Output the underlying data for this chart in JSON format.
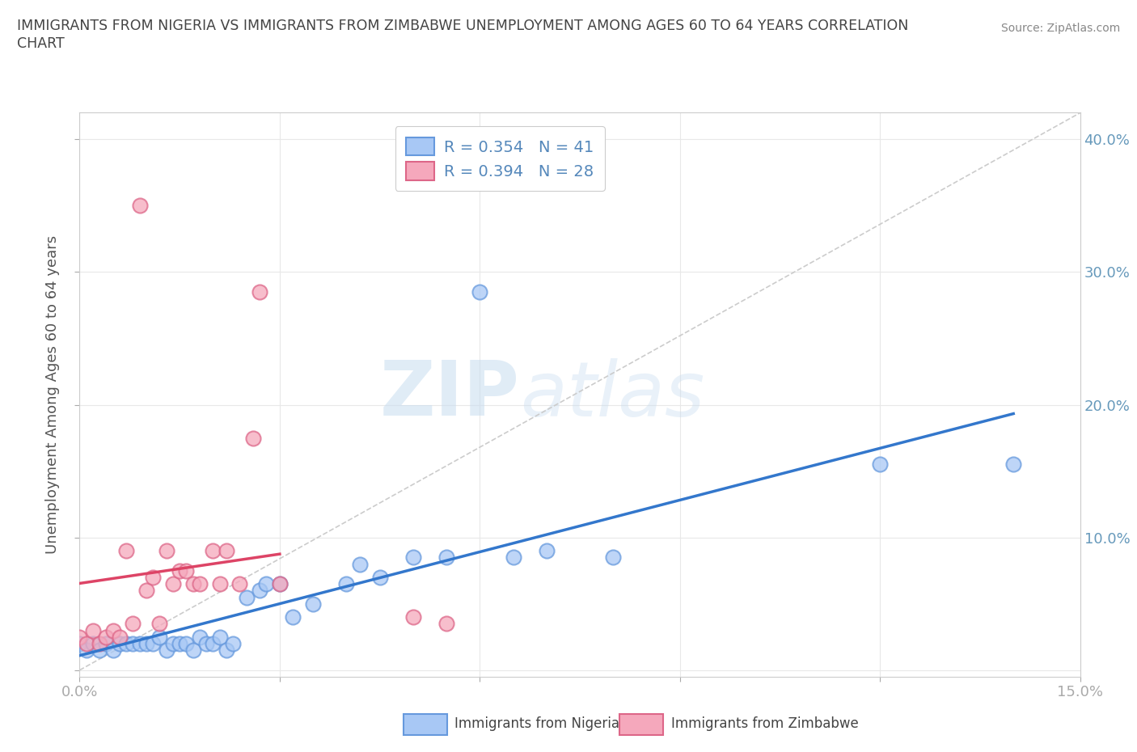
{
  "title_line1": "IMMIGRANTS FROM NIGERIA VS IMMIGRANTS FROM ZIMBABWE UNEMPLOYMENT AMONG AGES 60 TO 64 YEARS CORRELATION",
  "title_line2": "CHART",
  "source_text": "Source: ZipAtlas.com",
  "ylabel": "Unemployment Among Ages 60 to 64 years",
  "xlim": [
    0.0,
    0.15
  ],
  "ylim": [
    -0.005,
    0.42
  ],
  "xticks": [
    0.0,
    0.03,
    0.06,
    0.09,
    0.12,
    0.15
  ],
  "xticklabels": [
    "0.0%",
    "",
    "",
    "",
    "",
    "15.0%"
  ],
  "yticks": [
    0.0,
    0.1,
    0.2,
    0.3,
    0.4
  ],
  "yticklabels_right": [
    "",
    "10.0%",
    "20.0%",
    "30.0%",
    "40.0%"
  ],
  "nigeria_color": "#a8c8f5",
  "nigeria_edge": "#6699dd",
  "zimbabwe_color": "#f5a8bc",
  "zimbabwe_edge": "#dd6688",
  "trendline_nigeria_color": "#3377cc",
  "trendline_zimbabwe_color": "#dd4466",
  "trendline_diagonal_color": "#cccccc",
  "R_nigeria": 0.354,
  "N_nigeria": 41,
  "R_zimbabwe": 0.394,
  "N_zimbabwe": 28,
  "nigeria_x": [
    0.0,
    0.001,
    0.002,
    0.003,
    0.004,
    0.005,
    0.006,
    0.007,
    0.008,
    0.009,
    0.01,
    0.011,
    0.012,
    0.013,
    0.014,
    0.015,
    0.016,
    0.017,
    0.018,
    0.019,
    0.02,
    0.021,
    0.022,
    0.023,
    0.025,
    0.027,
    0.028,
    0.03,
    0.032,
    0.035,
    0.04,
    0.042,
    0.045,
    0.05,
    0.055,
    0.06,
    0.065,
    0.07,
    0.08,
    0.12,
    0.14
  ],
  "nigeria_y": [
    0.02,
    0.015,
    0.02,
    0.015,
    0.02,
    0.015,
    0.02,
    0.02,
    0.02,
    0.02,
    0.02,
    0.02,
    0.025,
    0.015,
    0.02,
    0.02,
    0.02,
    0.015,
    0.025,
    0.02,
    0.02,
    0.025,
    0.015,
    0.02,
    0.055,
    0.06,
    0.065,
    0.065,
    0.04,
    0.05,
    0.065,
    0.08,
    0.07,
    0.085,
    0.085,
    0.285,
    0.085,
    0.09,
    0.085,
    0.155,
    0.155
  ],
  "zimbabwe_x": [
    0.0,
    0.001,
    0.002,
    0.003,
    0.004,
    0.005,
    0.006,
    0.007,
    0.008,
    0.009,
    0.01,
    0.011,
    0.012,
    0.013,
    0.014,
    0.015,
    0.016,
    0.017,
    0.018,
    0.02,
    0.021,
    0.022,
    0.024,
    0.026,
    0.027,
    0.03,
    0.05,
    0.055
  ],
  "zimbabwe_y": [
    0.025,
    0.02,
    0.03,
    0.02,
    0.025,
    0.03,
    0.025,
    0.09,
    0.035,
    0.35,
    0.06,
    0.07,
    0.035,
    0.09,
    0.065,
    0.075,
    0.075,
    0.065,
    0.065,
    0.09,
    0.065,
    0.09,
    0.065,
    0.175,
    0.285,
    0.065,
    0.04,
    0.035
  ],
  "watermark_zip": "ZIP",
  "watermark_atlas": "atlas",
  "background_color": "#ffffff",
  "grid_color": "#e8e8e8",
  "tick_color": "#6699bb",
  "title_color": "#444444",
  "legend_label_color": "#5588bb"
}
